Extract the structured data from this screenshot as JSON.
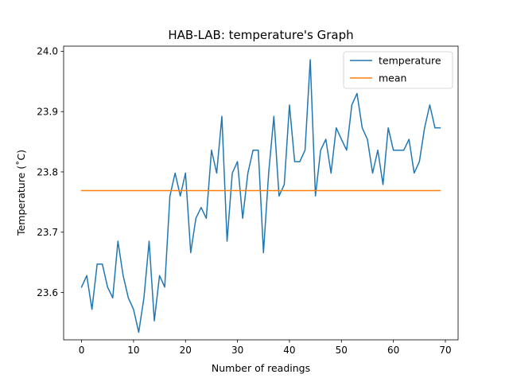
{
  "chart_data": {
    "type": "line",
    "title": "HAB-LAB: temperature's Graph",
    "xlabel": "Number of readings",
    "ylabel": "Temperature (˚C)",
    "xlim": [
      -3.45,
      72.45
    ],
    "ylim": [
      23.5215,
      24.0085
    ],
    "x_ticks": [
      0,
      10,
      20,
      30,
      40,
      50,
      60,
      70
    ],
    "x_tick_labels": [
      "0",
      "10",
      "20",
      "30",
      "40",
      "50",
      "60",
      "70"
    ],
    "y_ticks": [
      23.6,
      23.7,
      23.8,
      23.9,
      24.0
    ],
    "y_tick_labels": [
      "23.6",
      "23.7",
      "23.8",
      "23.9",
      "24.0"
    ],
    "grid": false,
    "legend_position": "upper right",
    "series": [
      {
        "name": "temperature",
        "color": "#1f77b4",
        "x": [
          0,
          1,
          2,
          3,
          4,
          5,
          6,
          7,
          8,
          9,
          10,
          11,
          12,
          13,
          14,
          15,
          16,
          17,
          18,
          19,
          20,
          21,
          22,
          23,
          24,
          25,
          26,
          27,
          28,
          29,
          30,
          31,
          32,
          33,
          34,
          35,
          36,
          37,
          38,
          39,
          40,
          41,
          42,
          43,
          44,
          45,
          46,
          47,
          48,
          49,
          50,
          51,
          52,
          53,
          54,
          55,
          56,
          57,
          58,
          59,
          60,
          61,
          62,
          63,
          64,
          65,
          66,
          67,
          68,
          69
        ],
        "values": [
          23.609,
          23.628,
          23.572,
          23.647,
          23.647,
          23.609,
          23.591,
          23.685,
          23.628,
          23.591,
          23.572,
          23.534,
          23.591,
          23.685,
          23.553,
          23.628,
          23.609,
          23.76,
          23.798,
          23.76,
          23.798,
          23.666,
          23.723,
          23.741,
          23.723,
          23.836,
          23.798,
          23.892,
          23.685,
          23.798,
          23.817,
          23.723,
          23.798,
          23.836,
          23.836,
          23.666,
          23.798,
          23.892,
          23.76,
          23.779,
          23.911,
          23.817,
          23.817,
          23.836,
          23.986,
          23.76,
          23.836,
          23.854,
          23.798,
          23.873,
          23.854,
          23.836,
          23.911,
          23.93,
          23.873,
          23.854,
          23.798,
          23.836,
          23.779,
          23.873,
          23.836,
          23.836,
          23.836,
          23.854,
          23.798,
          23.817,
          23.873,
          23.911,
          23.873,
          23.873
        ]
      },
      {
        "name": "mean",
        "color": "#ff7f0e",
        "x": [
          0,
          69
        ],
        "values": [
          23.769,
          23.769
        ]
      }
    ]
  }
}
